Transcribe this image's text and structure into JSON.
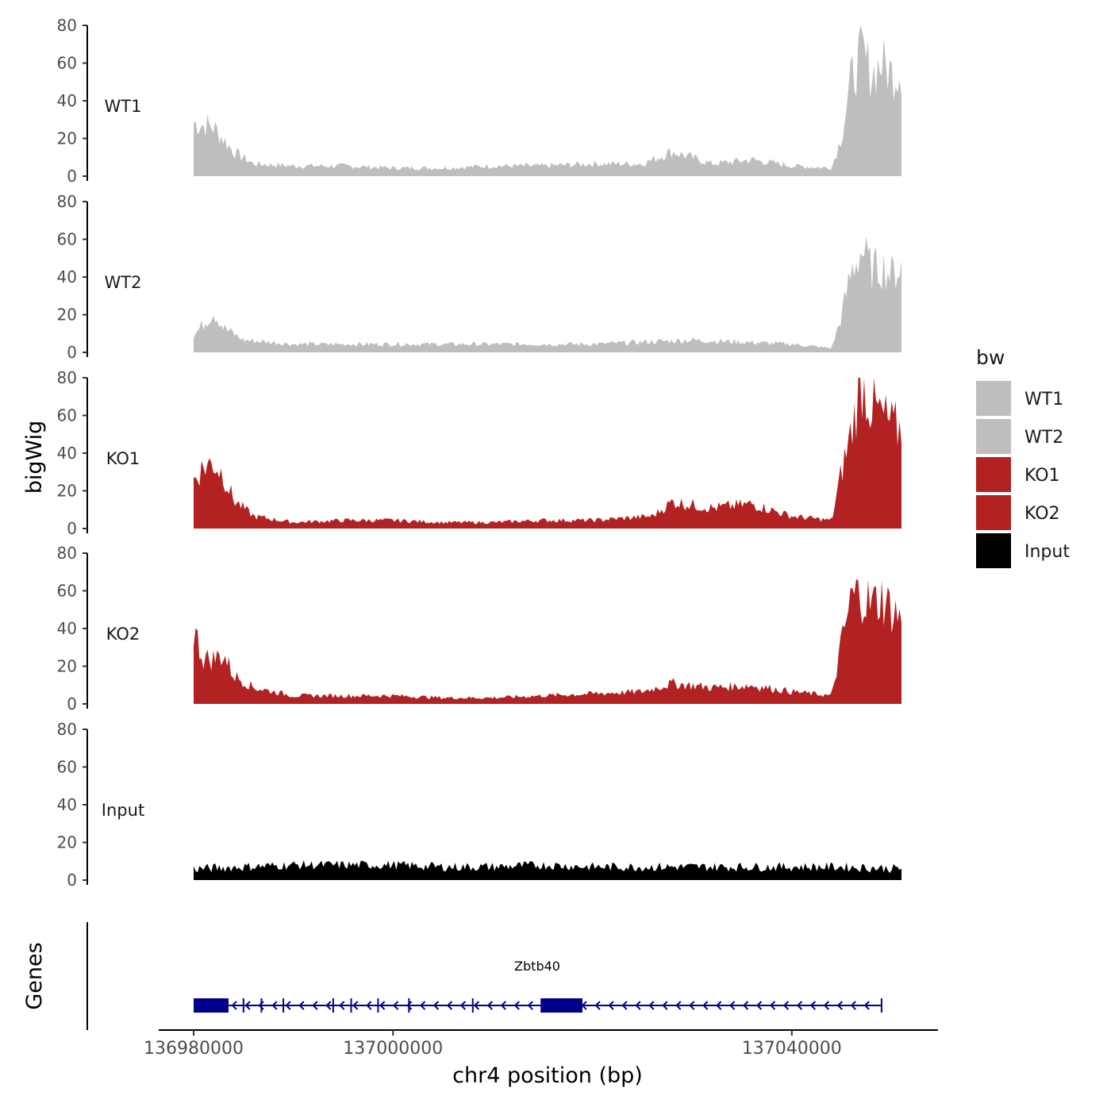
{
  "chart_data": {
    "type": "area",
    "xlabel": "chr4 position (bp)",
    "ylabel": "bigWig",
    "genes_label": "Genes",
    "xlim": [
      136980000,
      137051000
    ],
    "x_ticks": [
      136980000,
      137000000,
      137040000
    ],
    "x_tick_labels": [
      "136980000",
      "137000000",
      "137040000"
    ],
    "ylim": [
      0,
      80
    ],
    "y_ticks": [
      0,
      20,
      40,
      60,
      80
    ],
    "y_tick_labels": [
      "0",
      "20",
      "40",
      "60",
      "80"
    ],
    "legend": {
      "title": "bw",
      "position": "right",
      "items": [
        {
          "label": "WT1",
          "color": "#bebebe"
        },
        {
          "label": "WT2",
          "color": "#bebebe"
        },
        {
          "label": "KO1",
          "color": "#b22222"
        },
        {
          "label": "KO2",
          "color": "#b22222"
        },
        {
          "label": "Input",
          "color": "#000000"
        }
      ]
    },
    "series": [
      {
        "name": "WT1",
        "color": "#bebebe",
        "x": [
          136980000,
          136982000,
          136984000,
          136986000,
          136990000,
          136995000,
          137000000,
          137005000,
          137010000,
          137015000,
          137020000,
          137025000,
          137028000,
          137032000,
          137036000,
          137040000,
          137044000,
          137045000,
          137046000,
          137047000,
          137048000,
          137049000,
          137050000,
          137051000
        ],
        "values": [
          26,
          24,
          12,
          6,
          5,
          5,
          4,
          4,
          5,
          5,
          6,
          6,
          12,
          6,
          8,
          5,
          4,
          20,
          48,
          60,
          50,
          55,
          50,
          52
        ]
      },
      {
        "name": "WT2",
        "color": "#bebebe",
        "x": [
          136980000,
          136981000,
          136982000,
          136983000,
          136985000,
          136990000,
          136995000,
          137000000,
          137005000,
          137010000,
          137015000,
          137020000,
          137025000,
          137030000,
          137035000,
          137040000,
          137044000,
          137045000,
          137046000,
          137047000,
          137048000,
          137049000,
          137050000,
          137051000
        ],
        "values": [
          8,
          14,
          20,
          12,
          6,
          4,
          4,
          4,
          4,
          4,
          4,
          4,
          5,
          6,
          5,
          4,
          2,
          18,
          40,
          50,
          40,
          42,
          38,
          42
        ]
      },
      {
        "name": "KO1",
        "color": "#b22222",
        "x": [
          136980000,
          136981000,
          136982000,
          136983000,
          136984000,
          136986000,
          136990000,
          136995000,
          137000000,
          137005000,
          137010000,
          137015000,
          137020000,
          137026000,
          137028000,
          137032000,
          137036000,
          137040000,
          137044000,
          137045000,
          137046000,
          137047000,
          137048000,
          137049000,
          137050000,
          137051000
        ],
        "values": [
          24,
          30,
          32,
          26,
          14,
          6,
          3,
          4,
          4,
          3,
          3,
          4,
          4,
          6,
          13,
          10,
          12,
          6,
          4,
          28,
          48,
          72,
          60,
          55,
          50,
          48
        ]
      },
      {
        "name": "KO2",
        "color": "#b22222",
        "x": [
          136980000,
          136981000,
          136982000,
          136983000,
          136984000,
          136986000,
          136990000,
          136995000,
          137000000,
          137005000,
          137010000,
          137015000,
          137020000,
          137025000,
          137028000,
          137032000,
          137036000,
          137040000,
          137044000,
          137045000,
          137046000,
          137047000,
          137048000,
          137049000,
          137050000,
          137051000
        ],
        "values": [
          36,
          22,
          22,
          24,
          14,
          8,
          4,
          4,
          4,
          3,
          3,
          4,
          5,
          6,
          10,
          8,
          9,
          6,
          4,
          30,
          52,
          54,
          48,
          52,
          46,
          42
        ]
      },
      {
        "name": "Input",
        "color": "#000000",
        "x": [
          136980000,
          136985000,
          136990000,
          136995000,
          137000000,
          137005000,
          137010000,
          137015000,
          137020000,
          137025000,
          137030000,
          137035000,
          137040000,
          137045000,
          137051000
        ],
        "values": [
          6,
          7,
          8,
          8,
          8,
          7,
          7,
          8,
          7,
          7,
          7,
          7,
          7,
          7,
          6
        ]
      }
    ],
    "gene": {
      "name": "Zbtb40",
      "strand": "-",
      "color": "#00008b",
      "start": 136980000,
      "end": 137049000,
      "exons": [
        [
          136980000,
          136983500
        ],
        [
          137014800,
          137019000
        ]
      ],
      "introns_marks": [
        136985000,
        136986800,
        136989000,
        136994000,
        136995800,
        136998500,
        137001600,
        137008000
      ]
    }
  }
}
